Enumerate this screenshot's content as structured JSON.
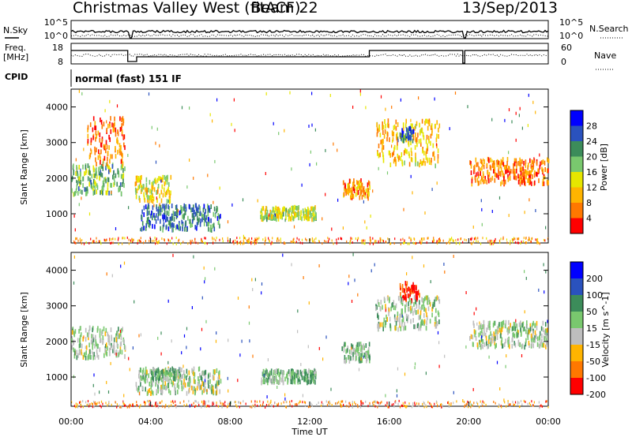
{
  "header": {
    "station": "Christmas Valley West (fitACF)",
    "beam": "Beam 22",
    "date": "13/Sep/2013"
  },
  "aux": {
    "nsky_label": "N.Sky",
    "nsky_ticks": [
      "10^5",
      "10^0"
    ],
    "nsky_right_ticks": [
      "10^5",
      "10^0"
    ],
    "nsearch_label": "N.Search",
    "freq_label_1": "Freq.",
    "freq_label_2": "[MHz]",
    "freq_ticks": [
      "18",
      "8"
    ],
    "nave_ticks": [
      "60",
      "0"
    ],
    "nave_label": "Nave",
    "cpid_label": "CPID",
    "cpid_value": "normal (fast) 151 IF"
  },
  "x_axis": {
    "label": "Time UT",
    "ticks": [
      "00:00",
      "04:00",
      "08:00",
      "12:00",
      "16:00",
      "20:00",
      "00:00"
    ]
  },
  "colors": {
    "power": [
      "#0000ff",
      "#2a52be",
      "#3c8c5a",
      "#79c86e",
      "#e6e600",
      "#ffb400",
      "#ff7800",
      "#ff0000"
    ],
    "velocity": [
      "#0000ff",
      "#2a52be",
      "#3c8c5a",
      "#79c86e",
      "#bebebe",
      "#ffb400",
      "#ff7800",
      "#ff0000"
    ]
  },
  "chart_data": [
    {
      "type": "heatmap",
      "title": "Power",
      "xlabel": "Time UT",
      "ylabel": "Slant Range [km]",
      "xlim": [
        0,
        24
      ],
      "ylim": [
        180,
        4500
      ],
      "yticks": [
        "1000",
        "2000",
        "3000",
        "4000"
      ],
      "colorbar": {
        "label": "Power [dB]",
        "ticks": [
          "28",
          "24",
          "20",
          "16",
          "12",
          "8",
          "4"
        ],
        "range": [
          0,
          30
        ]
      },
      "regions": [
        {
          "t0": 0.0,
          "t1": 2.7,
          "r0": 1600,
          "r1": 2450,
          "value": 18
        },
        {
          "t0": 0.8,
          "t1": 2.7,
          "r0": 2450,
          "r1": 3800,
          "value": 6
        },
        {
          "t0": 3.2,
          "t1": 5.0,
          "r0": 1400,
          "r1": 2100,
          "value": 12
        },
        {
          "t0": 3.5,
          "t1": 7.5,
          "r0": 600,
          "r1": 1300,
          "value": 22
        },
        {
          "t0": 9.5,
          "t1": 12.3,
          "r0": 900,
          "r1": 1250,
          "value": 14
        },
        {
          "t0": 13.6,
          "t1": 15.0,
          "r0": 1500,
          "r1": 2000,
          "value": 8
        },
        {
          "t0": 15.3,
          "t1": 18.5,
          "r0": 2400,
          "r1": 3700,
          "value": 10
        },
        {
          "t0": 16.5,
          "t1": 17.2,
          "r0": 3100,
          "r1": 3500,
          "value": 22
        },
        {
          "t0": 20.0,
          "t1": 24.0,
          "r0": 1900,
          "r1": 2600,
          "value": 6
        }
      ]
    },
    {
      "type": "heatmap",
      "title": "Velocity",
      "xlabel": "Time UT",
      "ylabel": "Slant Range [km]",
      "xlim": [
        0,
        24
      ],
      "ylim": [
        180,
        4500
      ],
      "yticks": [
        "1000",
        "2000",
        "3000",
        "4000"
      ],
      "colorbar": {
        "label": "Velocity [m s^-1]",
        "ticks": [
          "200",
          "100",
          "50",
          "15",
          "-15",
          "-50",
          "-100",
          "-200"
        ],
        "range": [
          -250,
          250
        ]
      },
      "regions": [
        {
          "t0": 0.0,
          "t1": 2.7,
          "r0": 1600,
          "r1": 2450,
          "value": 0
        },
        {
          "t0": 3.2,
          "t1": 7.5,
          "r0": 600,
          "r1": 1300,
          "value": 5
        },
        {
          "t0": 4.0,
          "t1": 5.5,
          "r0": 1000,
          "r1": 1300,
          "value": 40
        },
        {
          "t0": 9.5,
          "t1": 12.3,
          "r0": 900,
          "r1": 1250,
          "value": 30
        },
        {
          "t0": 13.6,
          "t1": 15.0,
          "r0": 1500,
          "r1": 2000,
          "value": 30
        },
        {
          "t0": 16.5,
          "t1": 17.5,
          "r0": 3200,
          "r1": 3700,
          "value": -220
        },
        {
          "t0": 15.3,
          "t1": 18.5,
          "r0": 2400,
          "r1": 3300,
          "value": 0
        },
        {
          "t0": 20.0,
          "t1": 24.0,
          "r0": 1900,
          "r1": 2600,
          "value": 0
        }
      ]
    }
  ]
}
